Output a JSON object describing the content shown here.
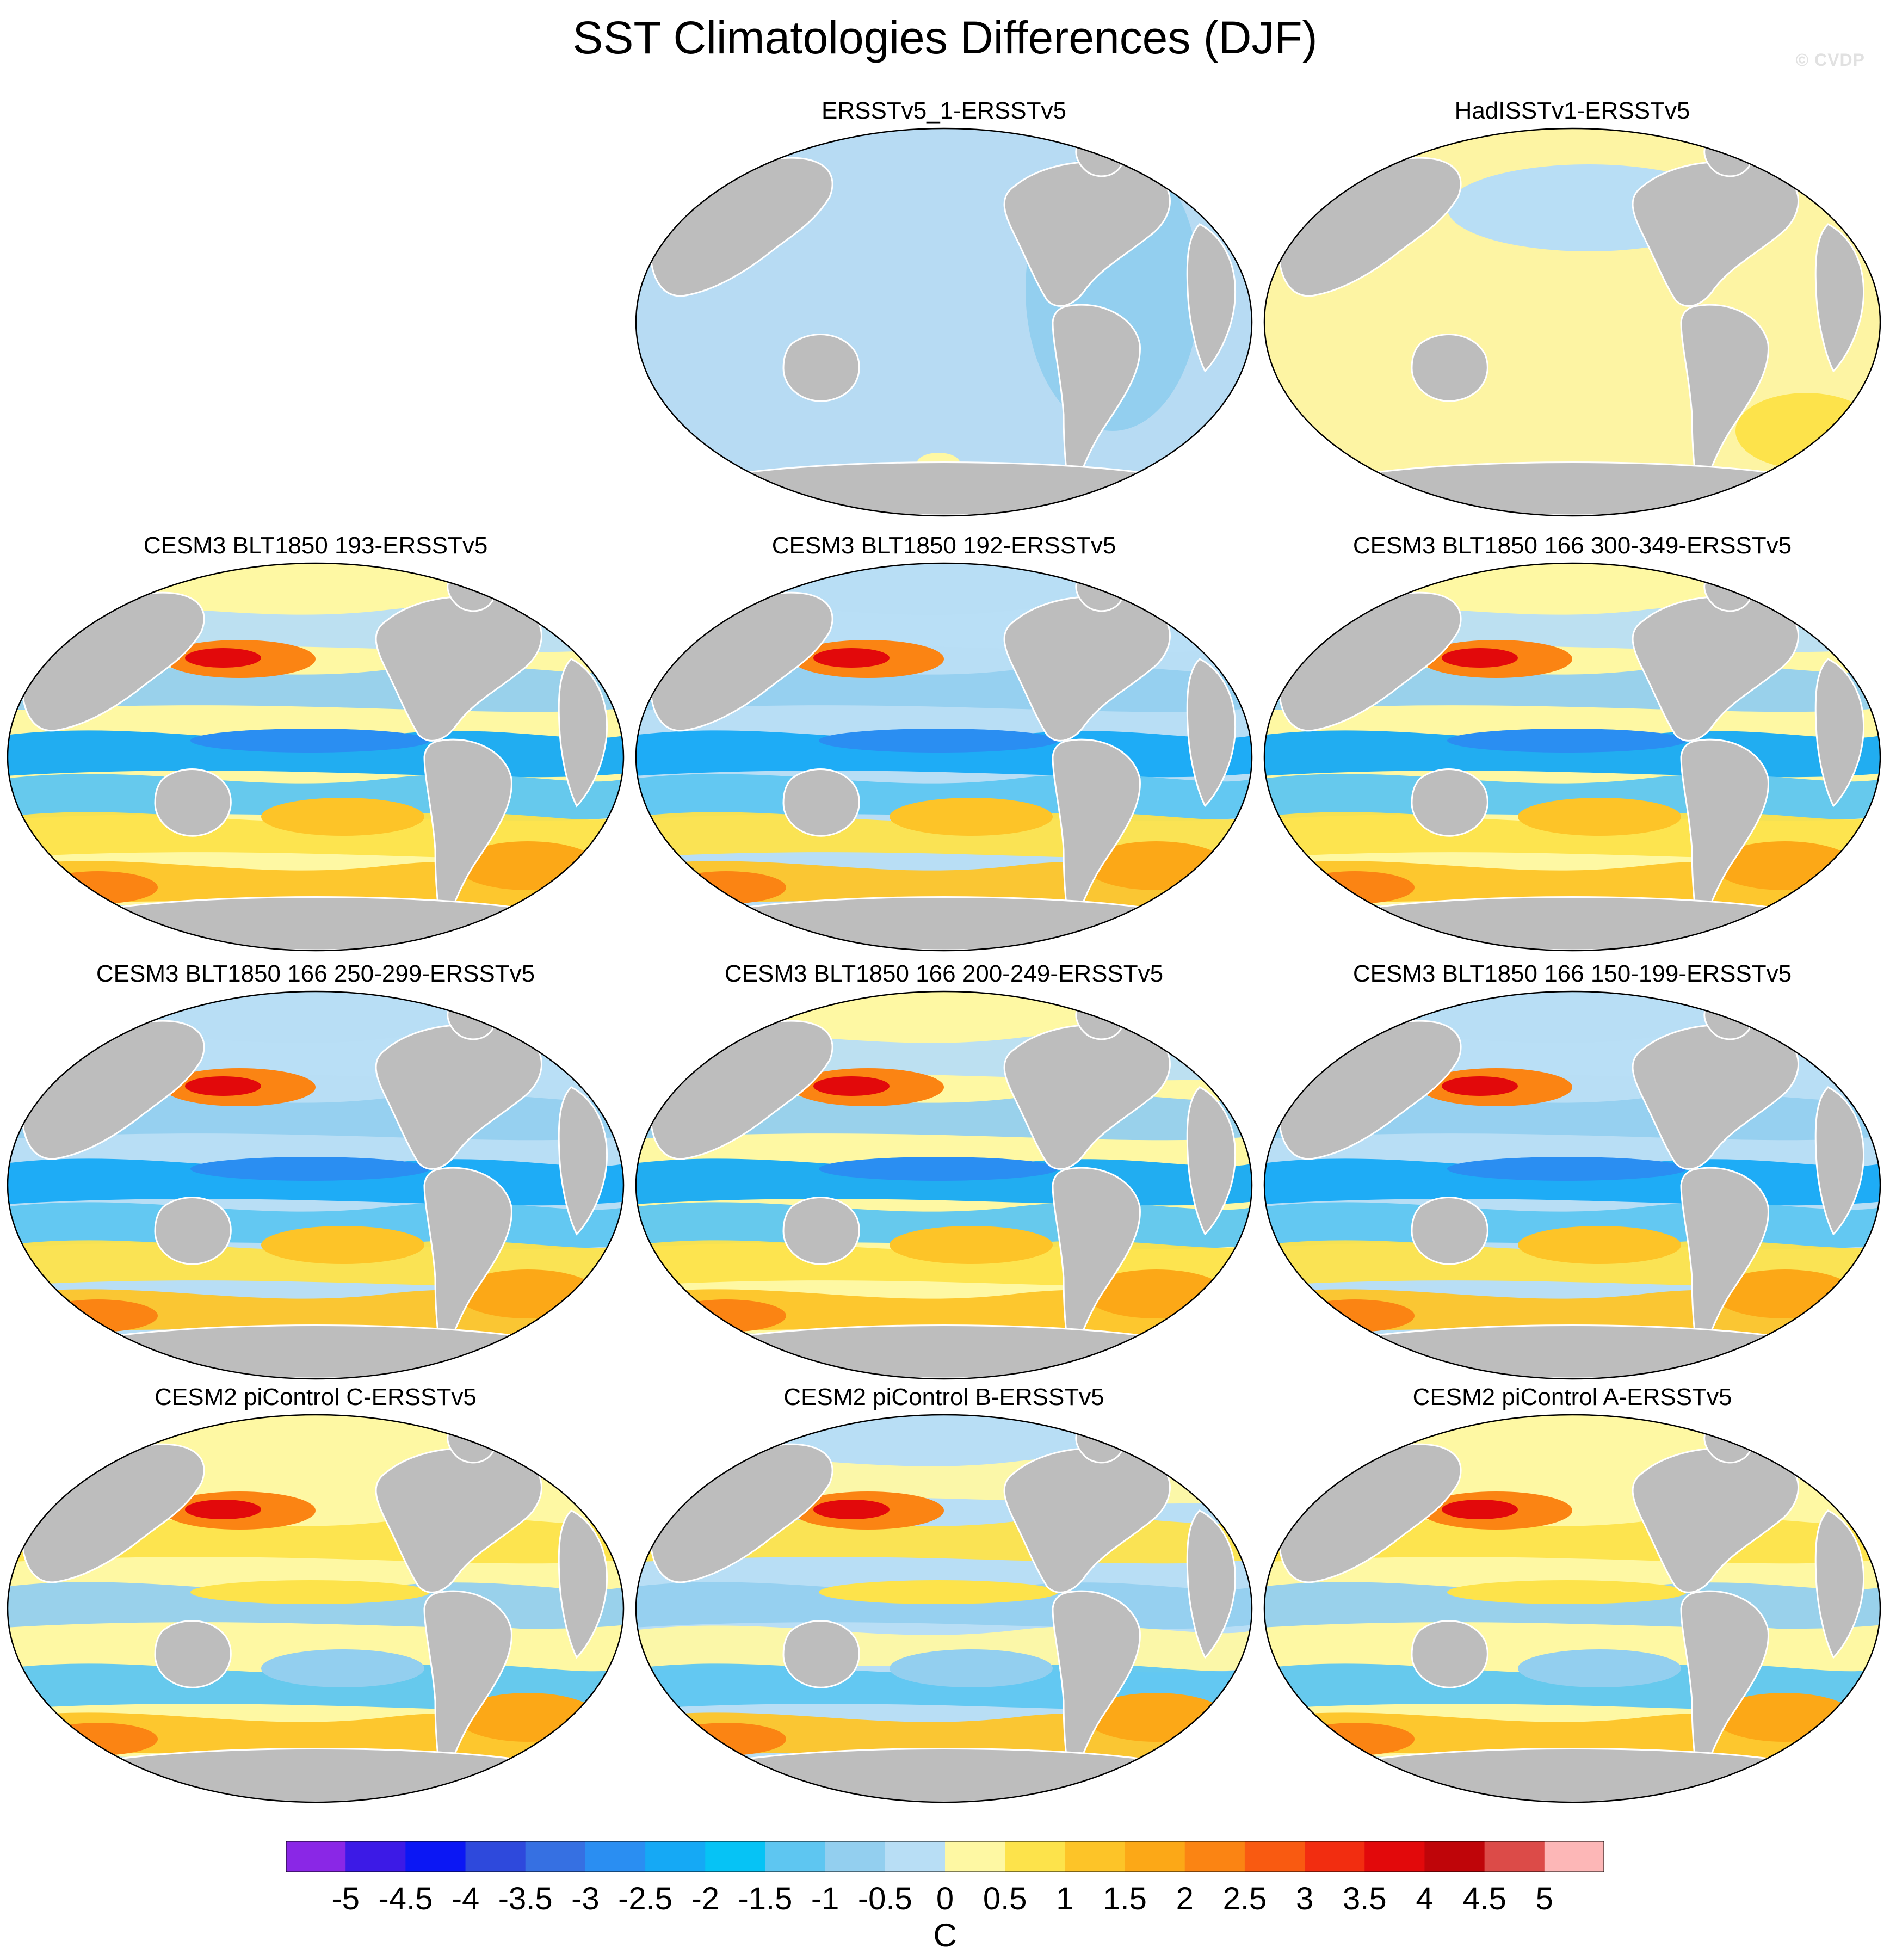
{
  "title": "SST Climatologies Differences (DJF)",
  "watermark": "© CVDP",
  "panels": [
    {
      "label": "ERSSTv5_1-ERSSTv5",
      "dominant_anomaly": "weak cool",
      "color": "#b7dbf3"
    },
    {
      "label": "HadISSTv1-ERSSTv5",
      "dominant_anomaly": "weak warm",
      "color": "#fdf4a3"
    },
    {
      "label": "CESM3 BLT1850 193-ERSSTv5",
      "dominant_anomaly": "mixed"
    },
    {
      "label": "CESM3 BLT1850 192-ERSSTv5",
      "dominant_anomaly": "mixed"
    },
    {
      "label": "CESM3 BLT1850 166 300-349-ERSSTv5",
      "dominant_anomaly": "mixed"
    },
    {
      "label": "CESM3 BLT1850 166 250-299-ERSSTv5",
      "dominant_anomaly": "mixed"
    },
    {
      "label": "CESM3 BLT1850 166 200-249-ERSSTv5",
      "dominant_anomaly": "mixed"
    },
    {
      "label": "CESM3 BLT1850 166 150-199-ERSSTv5",
      "dominant_anomaly": "mixed"
    },
    {
      "label": "CESM2 piControl C-ERSSTv5",
      "dominant_anomaly": "mixed"
    },
    {
      "label": "CESM2 piControl B-ERSSTv5",
      "dominant_anomaly": "mixed"
    },
    {
      "label": "CESM2 piControl A-ERSSTv5",
      "dominant_anomaly": "mixed"
    }
  ],
  "colorbar": {
    "units": "C",
    "tick_labels": [
      "-5",
      "-4.5",
      "-4",
      "-3.5",
      "-3",
      "-2.5",
      "-2",
      "-1.5",
      "-1",
      "-0.5",
      "0",
      "0.5",
      "1",
      "1.5",
      "2",
      "2.5",
      "3",
      "3.5",
      "4",
      "4.5",
      "5"
    ],
    "colors": [
      "#8a27e6",
      "#3c1ae6",
      "#0b17f4",
      "#2e49dc",
      "#3670e2",
      "#2a8ef2",
      "#15a9f5",
      "#06c3f5",
      "#5ec6f1",
      "#93cfef",
      "#b8def5",
      "#fef8a3",
      "#fde34b",
      "#fdc428",
      "#fca817",
      "#fb8413",
      "#f95a11",
      "#f22d10",
      "#e2090b",
      "#bf0509",
      "#dc4b48",
      "#fdb7b7"
    ],
    "land_color": "#bdbdbd"
  }
}
